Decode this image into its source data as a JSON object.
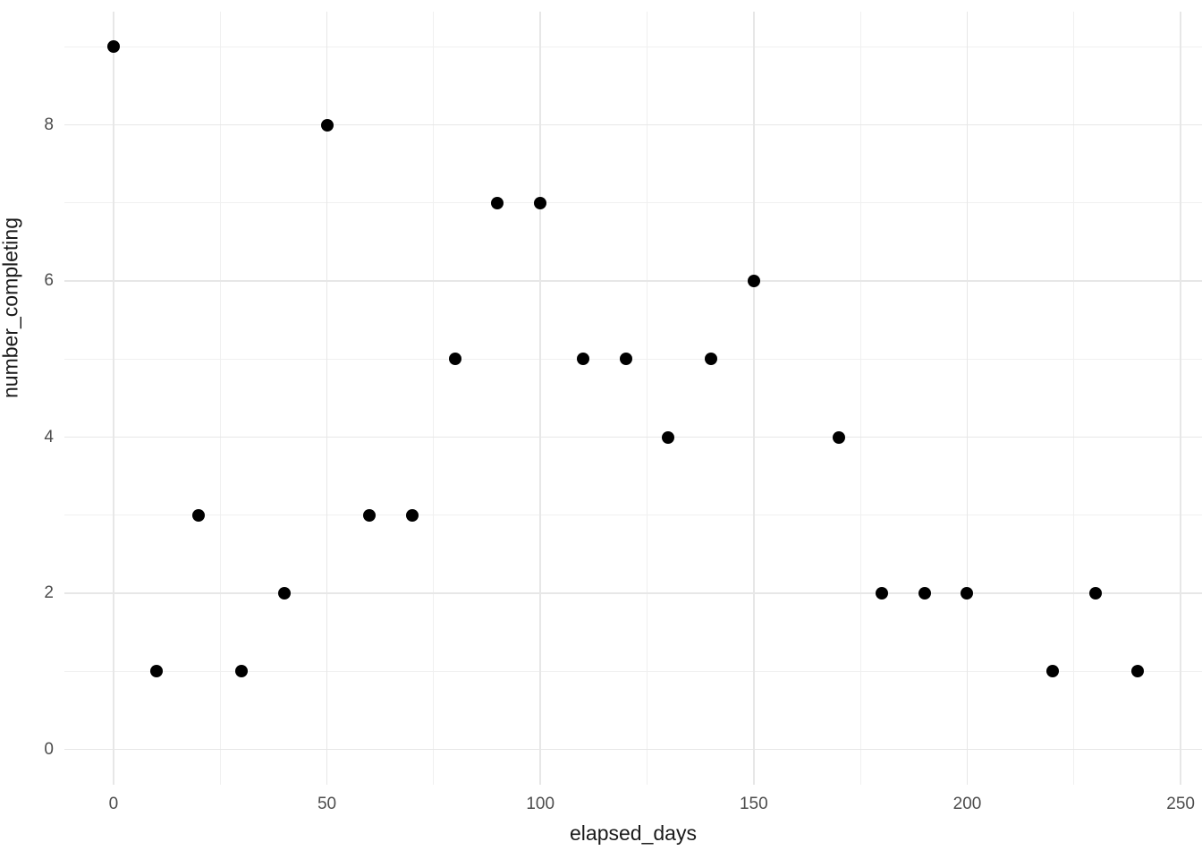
{
  "chart_data": {
    "type": "scatter",
    "title": "",
    "xlabel": "elapsed_days",
    "ylabel": "number_completing",
    "x": [
      0,
      10,
      20,
      30,
      40,
      50,
      60,
      70,
      80,
      90,
      100,
      110,
      120,
      130,
      140,
      150,
      170,
      180,
      190,
      200,
      220,
      230,
      240
    ],
    "y": [
      9,
      1,
      3,
      1,
      2,
      8,
      3,
      3,
      5,
      7,
      7,
      5,
      5,
      4,
      5,
      6,
      4,
      2,
      2,
      2,
      1,
      2,
      1
    ],
    "x_major_ticks": [
      0,
      50,
      100,
      150,
      200,
      250
    ],
    "x_minor_ticks": [
      25,
      75,
      125,
      175,
      225
    ],
    "y_major_ticks": [
      0,
      2,
      4,
      6,
      8
    ],
    "y_minor_ticks": [
      1,
      3,
      5,
      7,
      9
    ],
    "xlim": [
      -11.5,
      255
    ],
    "ylim": [
      -0.45,
      9.45
    ],
    "grid": "on",
    "legend_position": "none",
    "colors": {
      "point": "#000000",
      "grid_major": "#E7E7E7",
      "grid_minor": "#F0F0F0",
      "tick_label": "#4D4D4D",
      "axis_title": "#1A1A1A",
      "background": "#FFFFFF"
    }
  }
}
